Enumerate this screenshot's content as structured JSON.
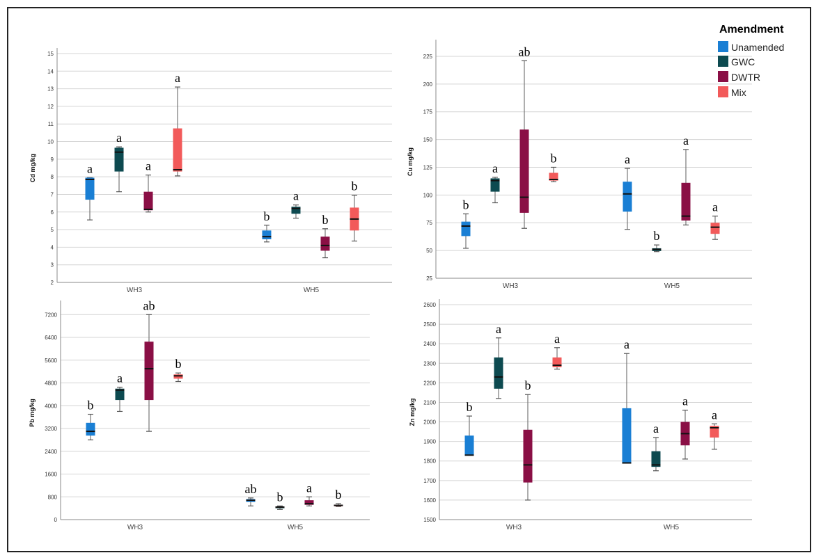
{
  "legend": {
    "title": "Amendment",
    "items": [
      {
        "label": "Unamended",
        "color": "#1a7fd4"
      },
      {
        "label": "GWC",
        "color": "#0d4a50"
      },
      {
        "label": "DWTR",
        "color": "#8a0f45"
      },
      {
        "label": "Mix",
        "color": "#f25a5a"
      }
    ]
  },
  "chart_data": [
    {
      "type": "box",
      "ylabel": "Cd mg/kg",
      "ylim": [
        2,
        15
      ],
      "yticks": [
        2,
        3,
        4,
        5,
        6,
        7,
        8,
        9,
        10,
        11,
        12,
        13,
        14,
        15
      ],
      "categories": [
        "WH3",
        "WH5"
      ],
      "groups": [
        {
          "category": "WH3",
          "series": "Unamended",
          "min": 5.55,
          "q1": 6.7,
          "median": 7.85,
          "q3": 7.95,
          "max": 7.95,
          "letter": "a"
        },
        {
          "category": "WH3",
          "series": "GWC",
          "min": 7.15,
          "q1": 8.3,
          "median": 9.4,
          "q3": 9.65,
          "max": 9.7,
          "letter": "a"
        },
        {
          "category": "WH3",
          "series": "DWTR",
          "min": 6.0,
          "q1": 6.1,
          "median": 6.15,
          "q3": 7.15,
          "max": 8.1,
          "letter": "a"
        },
        {
          "category": "WH3",
          "series": "Mix",
          "min": 8.05,
          "q1": 8.3,
          "median": 8.4,
          "q3": 10.75,
          "max": 13.1,
          "letter": "a"
        },
        {
          "category": "WH5",
          "series": "Unamended",
          "min": 4.3,
          "q1": 4.45,
          "median": 4.6,
          "q3": 4.95,
          "max": 5.25,
          "letter": "b"
        },
        {
          "category": "WH5",
          "series": "GWC",
          "min": 5.65,
          "q1": 5.9,
          "median": 6.2,
          "q3": 6.3,
          "max": 6.4,
          "letter": "a"
        },
        {
          "category": "WH5",
          "series": "DWTR",
          "min": 3.4,
          "q1": 3.8,
          "median": 4.1,
          "q3": 4.6,
          "max": 5.05,
          "letter": "b"
        },
        {
          "category": "WH5",
          "series": "Mix",
          "min": 4.35,
          "q1": 4.95,
          "median": 5.6,
          "q3": 6.25,
          "max": 6.95,
          "letter": "b"
        }
      ]
    },
    {
      "type": "box",
      "ylabel": "Cu mg/kg",
      "ylim": [
        25,
        235
      ],
      "yticks": [
        25,
        50,
        75,
        100,
        125,
        150,
        175,
        200,
        225
      ],
      "categories": [
        "WH3",
        "WH5"
      ],
      "groups": [
        {
          "category": "WH3",
          "series": "Unamended",
          "min": 52,
          "q1": 63,
          "median": 72,
          "q3": 76,
          "max": 83,
          "letter": "b"
        },
        {
          "category": "WH3",
          "series": "GWC",
          "min": 93,
          "q1": 103,
          "median": 113,
          "q3": 115,
          "max": 116,
          "letter": "a"
        },
        {
          "category": "WH3",
          "series": "DWTR",
          "min": 70,
          "q1": 84,
          "median": 98,
          "q3": 159,
          "max": 221,
          "letter": "ab"
        },
        {
          "category": "WH3",
          "series": "Mix",
          "min": 112,
          "q1": 113,
          "median": 114,
          "q3": 120,
          "max": 125,
          "letter": "b"
        },
        {
          "category": "WH5",
          "series": "Unamended",
          "min": 69,
          "q1": 85,
          "median": 101,
          "q3": 112,
          "max": 124,
          "letter": "a"
        },
        {
          "category": "WH5",
          "series": "GWC",
          "min": 49,
          "q1": 49.5,
          "median": 51,
          "q3": 52,
          "max": 55,
          "letter": "b"
        },
        {
          "category": "WH5",
          "series": "DWTR",
          "min": 73,
          "q1": 77,
          "median": 81,
          "q3": 111,
          "max": 141,
          "letter": "a"
        },
        {
          "category": "WH5",
          "series": "Mix",
          "min": 60,
          "q1": 65,
          "median": 71,
          "q3": 75,
          "max": 81,
          "letter": "a"
        }
      ]
    },
    {
      "type": "box",
      "ylabel": "Pb mg/kg",
      "ylim": [
        0,
        7500
      ],
      "yticks": [
        0,
        800,
        1600,
        2400,
        3200,
        4000,
        4800,
        5600,
        6400,
        7200
      ],
      "categories": [
        "WH3",
        "WH5"
      ],
      "groups": [
        {
          "category": "WH3",
          "series": "Unamended",
          "min": 2800,
          "q1": 2950,
          "median": 3100,
          "q3": 3400,
          "max": 3700,
          "letter": "b"
        },
        {
          "category": "WH3",
          "series": "GWC",
          "min": 3800,
          "q1": 4200,
          "median": 4550,
          "q3": 4600,
          "max": 4650,
          "letter": "a"
        },
        {
          "category": "WH3",
          "series": "DWTR",
          "min": 3100,
          "q1": 4200,
          "median": 5300,
          "q3": 6250,
          "max": 7200,
          "letter": "ab"
        },
        {
          "category": "WH3",
          "series": "Mix",
          "min": 4850,
          "q1": 4950,
          "median": 5050,
          "q3": 5100,
          "max": 5150,
          "letter": "b"
        },
        {
          "category": "WH5",
          "series": "Unamended",
          "min": 480,
          "q1": 620,
          "median": 680,
          "q3": 720,
          "max": 760,
          "letter": "ab"
        },
        {
          "category": "WH5",
          "series": "GWC",
          "min": 360,
          "q1": 400,
          "median": 440,
          "q3": 460,
          "max": 480,
          "letter": "b"
        },
        {
          "category": "WH5",
          "series": "DWTR",
          "min": 480,
          "q1": 520,
          "median": 560,
          "q3": 680,
          "max": 800,
          "letter": "a"
        },
        {
          "category": "WH5",
          "series": "Mix",
          "min": 460,
          "q1": 480,
          "median": 500,
          "q3": 520,
          "max": 560,
          "letter": "b"
        }
      ]
    },
    {
      "type": "box",
      "ylabel": "Zn mg/kg",
      "ylim": [
        1500,
        2600
      ],
      "yticks": [
        1500,
        1600,
        1700,
        1800,
        1900,
        2000,
        2100,
        2200,
        2300,
        2400,
        2500,
        2600
      ],
      "categories": [
        "WH3",
        "WH5"
      ],
      "groups": [
        {
          "category": "WH3",
          "series": "Unamended",
          "min": 1830,
          "q1": 1830,
          "median": 1830,
          "q3": 1930,
          "max": 2030,
          "letter": "b"
        },
        {
          "category": "WH3",
          "series": "GWC",
          "min": 2120,
          "q1": 2170,
          "median": 2230,
          "q3": 2330,
          "max": 2430,
          "letter": "a"
        },
        {
          "category": "WH3",
          "series": "DWTR",
          "min": 1600,
          "q1": 1690,
          "median": 1780,
          "q3": 1960,
          "max": 2140,
          "letter": "b"
        },
        {
          "category": "WH3",
          "series": "Mix",
          "min": 2270,
          "q1": 2280,
          "median": 2290,
          "q3": 2330,
          "max": 2380,
          "letter": "a"
        },
        {
          "category": "WH5",
          "series": "Unamended",
          "min": 1790,
          "q1": 1790,
          "median": 1790,
          "q3": 2070,
          "max": 2350,
          "letter": "a"
        },
        {
          "category": "WH5",
          "series": "GWC",
          "min": 1750,
          "q1": 1770,
          "median": 1780,
          "q3": 1850,
          "max": 1920,
          "letter": "a"
        },
        {
          "category": "WH5",
          "series": "DWTR",
          "min": 1810,
          "q1": 1880,
          "median": 1940,
          "q3": 2000,
          "max": 2060,
          "letter": "a"
        },
        {
          "category": "WH5",
          "series": "Mix",
          "min": 1860,
          "q1": 1920,
          "median": 1970,
          "q3": 1980,
          "max": 1990,
          "letter": "a"
        }
      ]
    }
  ]
}
